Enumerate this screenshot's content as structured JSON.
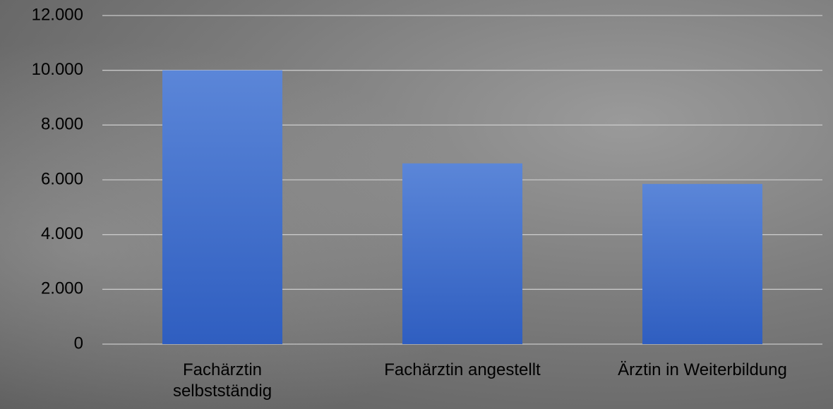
{
  "chart_data": {
    "type": "bar",
    "categories": [
      "Fachärztin selbstständig",
      "Fachärztin angestellt",
      "Ärztin in Weiterbildung"
    ],
    "values": [
      10000,
      6600,
      5850
    ],
    "color": "#3a6bd0",
    "ylim": [
      0,
      12000
    ],
    "yticks": [
      0,
      {
        "value": 2000,
        "label": "2.000"
      },
      {
        "value": 4000,
        "label": "4.000"
      },
      {
        "value": 6000,
        "label": "6.000"
      },
      {
        "value": 8000,
        "label": "8.000"
      },
      {
        "value": 10000,
        "label": "10.000"
      },
      {
        "value": 12000,
        "label": "12.000"
      }
    ],
    "grid": true
  }
}
